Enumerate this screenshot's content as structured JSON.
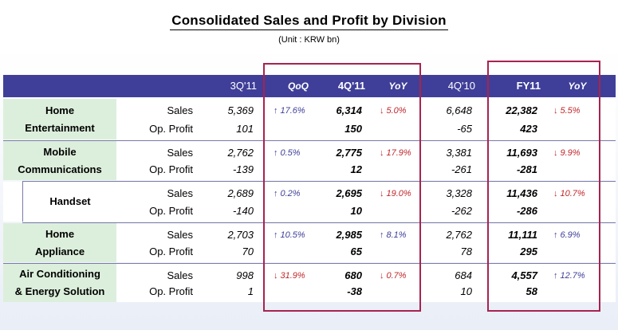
{
  "title": "Consolidated Sales and Profit by Division",
  "unit": "(Unit : KRW bn)",
  "header": {
    "q3": "3Q'11",
    "qoq": "QoQ",
    "q4": "4Q'11",
    "yoy": "YoY",
    "q4prev": "4Q'10",
    "fy": "FY11",
    "fy_yoy": "YoY"
  },
  "labels": {
    "sales": "Sales",
    "op": "Op. Profit"
  },
  "rows": [
    {
      "name1": "Home",
      "name2": "Entertainment",
      "sales": {
        "q3": "5,369",
        "qoq": "17.6%",
        "qoq_dir": "up",
        "q4": "6,314",
        "yoy": "5.0%",
        "yoy_dir": "down",
        "q4prev": "6,648",
        "fy": "22,382",
        "fy_yoy": "5.5%",
        "fy_yoy_dir": "down"
      },
      "op": {
        "q3": "101",
        "q4": "150",
        "q4prev": "-65",
        "fy": "423"
      }
    },
    {
      "name1": "Mobile",
      "name2": "Communications",
      "sales": {
        "q3": "2,762",
        "qoq": "0.5%",
        "qoq_dir": "up",
        "q4": "2,775",
        "yoy": "17.9%",
        "yoy_dir": "down",
        "q4prev": "3,381",
        "fy": "11,693",
        "fy_yoy": "9.9%",
        "fy_yoy_dir": "down"
      },
      "op": {
        "q3": "-139",
        "q4": "12",
        "q4prev": "-261",
        "fy": "-281"
      }
    },
    {
      "name1": "Handset",
      "name2": "",
      "sales": {
        "q3": "2,689",
        "qoq": "0.2%",
        "qoq_dir": "up",
        "q4": "2,695",
        "yoy": "19.0%",
        "yoy_dir": "down",
        "q4prev": "3,328",
        "fy": "11,436",
        "fy_yoy": "10.7%",
        "fy_yoy_dir": "down"
      },
      "op": {
        "q3": "-140",
        "q4": "10",
        "q4prev": "-262",
        "fy": "-286"
      }
    },
    {
      "name1": "Home",
      "name2": "Appliance",
      "sales": {
        "q3": "2,703",
        "qoq": "10.5%",
        "qoq_dir": "up",
        "q4": "2,985",
        "yoy": "8.1%",
        "yoy_dir": "up",
        "q4prev": "2,762",
        "fy": "11,111",
        "fy_yoy": "6.9%",
        "fy_yoy_dir": "up"
      },
      "op": {
        "q3": "70",
        "q4": "65",
        "q4prev": "78",
        "fy": "295"
      }
    },
    {
      "name1": "Air Conditioning",
      "name2": "& Energy Solution",
      "sales": {
        "q3": "998",
        "qoq": "31.9%",
        "qoq_dir": "down",
        "q4": "680",
        "yoy": "0.7%",
        "yoy_dir": "down",
        "q4prev": "684",
        "fy": "4,557",
        "fy_yoy": "12.7%",
        "fy_yoy_dir": "up"
      },
      "op": {
        "q3": "1",
        "q4": "-38",
        "q4prev": "10",
        "fy": "58"
      }
    }
  ],
  "colors": {
    "header_bg": "#3f3f99",
    "division_bg": "#dcefdc",
    "highlight_frame": "#a8234e",
    "up": "#3f3f99",
    "down": "#c0282c"
  },
  "icons": {
    "up": "arrow-up-icon",
    "down": "arrow-down-icon"
  }
}
